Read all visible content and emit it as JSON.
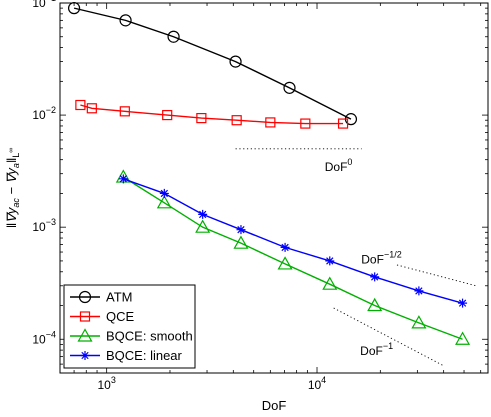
{
  "chart_data": {
    "type": "line",
    "xscale": "log",
    "yscale": "log",
    "xlabel": "DoF",
    "ylabel": "‖∇y_ac − ∇y_a‖_{L^∞}",
    "xlim": [
      600,
      65000
    ],
    "ylim": [
      5e-05,
      0.1
    ],
    "x_ticks": [
      {
        "value": 1000,
        "mantissa": "10",
        "exp": "3"
      },
      {
        "value": 10000,
        "mantissa": "10",
        "exp": "4"
      }
    ],
    "y_ticks": [
      {
        "value": 0.1,
        "mantissa": "10",
        "exp": "−1"
      },
      {
        "value": 0.01,
        "mantissa": "10",
        "exp": "−2"
      },
      {
        "value": 0.001,
        "mantissa": "10",
        "exp": "−3"
      },
      {
        "value": 0.0001,
        "mantissa": "10",
        "exp": "−4"
      }
    ],
    "grid": false,
    "legend_position": "bottom-left",
    "series": [
      {
        "name": "ATM",
        "color": "#000000",
        "marker": "circle",
        "x": [
          700,
          1230,
          2080,
          4100,
          7400,
          14500
        ],
        "y": [
          0.09,
          0.07,
          0.05,
          0.03,
          0.0175,
          0.0092
        ]
      },
      {
        "name": "QCE",
        "color": "#ff0000",
        "marker": "square",
        "x": [
          750,
          850,
          1220,
          1940,
          2820,
          4150,
          6000,
          8800,
          13300
        ],
        "y": [
          0.0123,
          0.0115,
          0.0108,
          0.01,
          0.0094,
          0.009,
          0.0086,
          0.0084,
          0.0084
        ]
      },
      {
        "name": "BQCE: smooth",
        "color": "#00b000",
        "marker": "triangle",
        "x": [
          1200,
          1880,
          2860,
          4350,
          7050,
          11500,
          18800,
          30500,
          49200
        ],
        "y": [
          0.0028,
          0.00165,
          0.001,
          0.00072,
          0.00047,
          0.00031,
          0.0002,
          0.00014,
          0.0001
        ]
      },
      {
        "name": "BQCE: linear",
        "color": "#0000ff",
        "marker": "star",
        "x": [
          1200,
          1880,
          2860,
          4350,
          7050,
          11500,
          18800,
          30500,
          49200
        ],
        "y": [
          0.0027,
          0.002,
          0.0013,
          0.00095,
          0.00066,
          0.0005,
          0.00036,
          0.00027,
          0.00021
        ]
      }
    ],
    "reference_lines": [
      {
        "label_base": "DoF",
        "label_exp": "0",
        "x": [
          4100,
          16300
        ],
        "y": [
          0.005,
          0.005
        ]
      },
      {
        "label_base": "DoF",
        "label_exp": "−1/2",
        "x": [
          24000,
          57000
        ],
        "y": [
          0.00046,
          0.0003
        ]
      },
      {
        "label_base": "DoF",
        "label_exp": "−1",
        "x": [
          12000,
          40000
        ],
        "y": [
          0.00019,
          5.8e-05
        ]
      }
    ]
  }
}
